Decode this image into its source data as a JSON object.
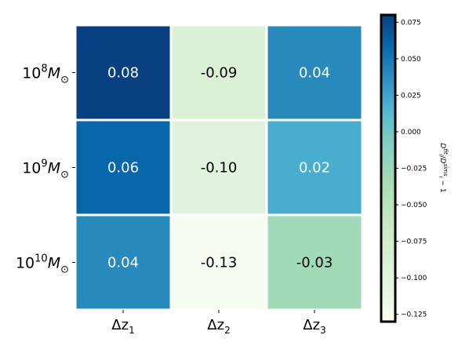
{
  "chart_data": {
    "type": "heatmap",
    "title": "",
    "rows": [
      {
        "base": "10",
        "exp": "8",
        "unit": "M",
        "sub": "⊙"
      },
      {
        "base": "10",
        "exp": "9",
        "unit": "M",
        "sub": "⊙"
      },
      {
        "base": "10",
        "exp": "10",
        "unit": "M",
        "sub": "⊙"
      }
    ],
    "columns": [
      {
        "sym": "Δz",
        "sub": "1"
      },
      {
        "sym": "Δz",
        "sub": "2"
      },
      {
        "sym": "Δz",
        "sub": "3"
      }
    ],
    "values": [
      [
        0.08,
        -0.09,
        0.04
      ],
      [
        0.06,
        -0.1,
        0.02
      ],
      [
        0.04,
        -0.13,
        -0.03
      ]
    ],
    "cell_labels": [
      [
        "0.08",
        "-0.09",
        "0.04"
      ],
      [
        "0.06",
        "-0.10",
        "0.02"
      ],
      [
        "0.04",
        "-0.13",
        "-0.03"
      ]
    ],
    "colormap": "GnBu",
    "colorbar": {
      "vmin": -0.13,
      "vmax": 0.08,
      "ticks": [
        0.075,
        0.05,
        0.025,
        0.0,
        -0.025,
        -0.05,
        -0.075,
        -0.1,
        -0.125
      ],
      "tick_labels": [
        "0.075",
        "0.050",
        "0.025",
        "0.000",
        "−0.025",
        "−0.050",
        "−0.075",
        "−0.100",
        "−0.125"
      ],
      "label_sym": "D",
      "label_sup_num": "fit",
      "label_sub_num": "i",
      "label_sup_den": "sims",
      "label_sub_den": "i",
      "label_tail": " − 1"
    },
    "grid": false,
    "legend": "none"
  }
}
